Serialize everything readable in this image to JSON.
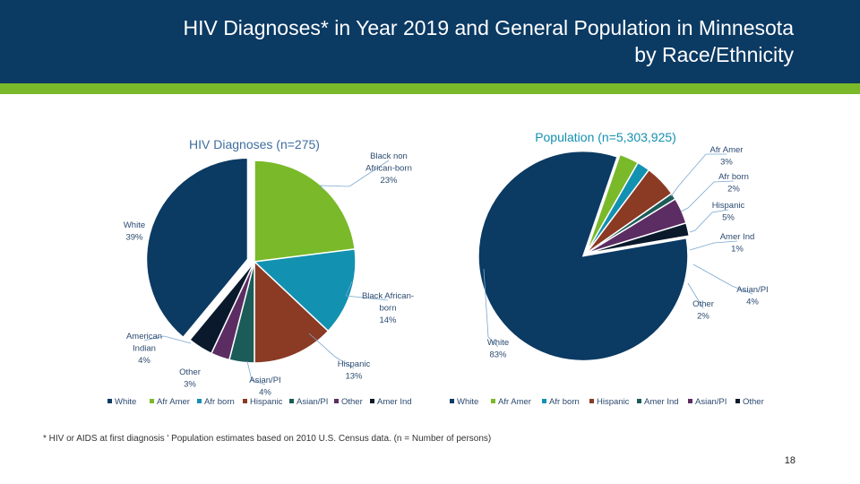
{
  "header": {
    "title_line1": "HIV Diagnoses* in Year 2019 and General Population in Minnesota",
    "title_line2": "by Race/Ethnicity"
  },
  "colors": {
    "header_bg": "#0b3a63",
    "stripe": "#7ab929"
  },
  "chart_data": [
    {
      "type": "pie",
      "title": "HIV Diagnoses (n=275)",
      "slices": [
        {
          "key": "black_non_afr",
          "label_lines": [
            "Black non",
            "African-born",
            "23%"
          ],
          "value": 23,
          "color": "#7ab929"
        },
        {
          "key": "black_afr",
          "label_lines": [
            "Black African-",
            "born",
            "14%"
          ],
          "value": 14,
          "color": "#1391b1"
        },
        {
          "key": "hispanic",
          "label_lines": [
            "Hispanic",
            "13%"
          ],
          "value": 13,
          "color": "#8b3a24"
        },
        {
          "key": "asian_pi",
          "label_lines": [
            "Asian/PI",
            "4%"
          ],
          "value": 4,
          "color": "#1b5c59"
        },
        {
          "key": "other",
          "label_lines": [
            "Other",
            "3%"
          ],
          "value": 3,
          "color": "#5c2d63"
        },
        {
          "key": "american_indian",
          "label_lines": [
            "American",
            "Indian",
            "4%"
          ],
          "value": 4,
          "color": "#0a1a2c"
        },
        {
          "key": "white",
          "label_lines": [
            "White",
            "39%"
          ],
          "value": 39,
          "color": "#0b3a63"
        }
      ],
      "legend": [
        {
          "label": "White",
          "color": "#0b3a63"
        },
        {
          "label": "Afr Amer",
          "color": "#7ab929"
        },
        {
          "label": "Afr born",
          "color": "#1391b1"
        },
        {
          "label": "Hispanic",
          "color": "#8b3a24"
        },
        {
          "label": "Asian/PI",
          "color": "#1b5c59"
        },
        {
          "label": "Other",
          "color": "#5c2d63"
        },
        {
          "label": "Amer Ind",
          "color": "#0a1a2c"
        }
      ]
    },
    {
      "type": "pie",
      "title": "Population (n=5,303,925)",
      "slices": [
        {
          "key": "afr_amer",
          "label_lines": [
            "Afr Amer",
            "3%"
          ],
          "value": 3,
          "color": "#7ab929"
        },
        {
          "key": "afr_born",
          "label_lines": [
            "Afr born",
            "2%"
          ],
          "value": 2,
          "color": "#1391b1"
        },
        {
          "key": "hispanic",
          "label_lines": [
            "Hispanic",
            "5%"
          ],
          "value": 5,
          "color": "#8b3a24"
        },
        {
          "key": "amer_ind",
          "label_lines": [
            "Amer Ind",
            "1%"
          ],
          "value": 1,
          "color": "#1b5c59"
        },
        {
          "key": "asian_pi",
          "label_lines": [
            "Asian/PI",
            "4%"
          ],
          "value": 4,
          "color": "#5c2d63"
        },
        {
          "key": "other",
          "label_lines": [
            "Other",
            "2%"
          ],
          "value": 2,
          "color": "#0a1a2c"
        },
        {
          "key": "white",
          "label_lines": [
            "White",
            "83%"
          ],
          "value": 83,
          "color": "#0b3a63"
        }
      ],
      "legend": [
        {
          "label": "White",
          "color": "#0b3a63"
        },
        {
          "label": "Afr Amer",
          "color": "#7ab929"
        },
        {
          "label": "Afr born",
          "color": "#1391b1"
        },
        {
          "label": "Hispanic",
          "color": "#8b3a24"
        },
        {
          "label": "Amer Ind",
          "color": "#1b5c59"
        },
        {
          "label": "Asian/PI",
          "color": "#5c2d63"
        },
        {
          "label": "Other",
          "color": "#0a1a2c"
        }
      ]
    }
  ],
  "footnote": "* HIV or AIDS at first diagnosis ' Population estimates based on 2010 U.S. Census data. (n = Number of persons)",
  "page_number": "18"
}
